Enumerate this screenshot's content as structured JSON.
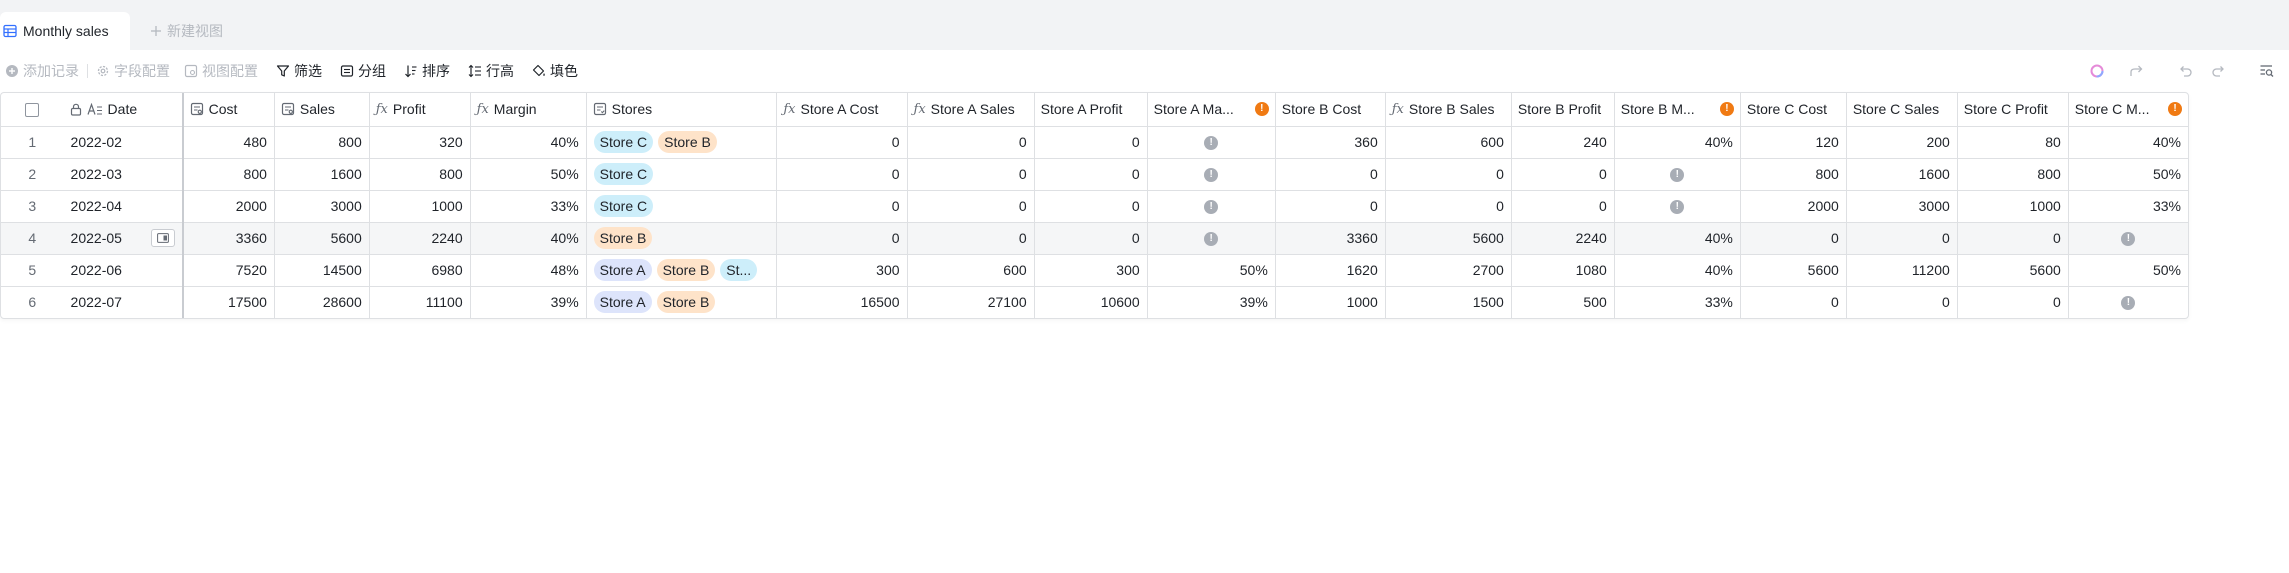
{
  "view": {
    "active_tab": "Monthly sales",
    "new_view": "新建视图"
  },
  "toolbar": {
    "add_record": "添加记录",
    "field_config": "字段配置",
    "view_config": "视图配置",
    "filter": "筛选",
    "group": "分组",
    "sort": "排序",
    "row_height": "行高",
    "fill_color": "填色"
  },
  "colors": {
    "tag_store_a": "#dde4fb",
    "tag_store_b": "#fee3c9",
    "tag_store_c": "#cdeefa",
    "warning": "#f07a13",
    "info": "#a8adb5"
  },
  "table": {
    "columns": [
      {
        "label": "Date",
        "icon": "text-icon"
      },
      {
        "label": "Cost",
        "icon": "number-icon"
      },
      {
        "label": "Sales",
        "icon": "number-icon"
      },
      {
        "label": "Profit",
        "icon": "formula-icon"
      },
      {
        "label": "Margin",
        "icon": "formula-icon"
      },
      {
        "label": "Stores",
        "icon": "multi-select-icon"
      },
      {
        "label": "Store A Cost",
        "icon": "formula-icon"
      },
      {
        "label": "Store A Sales",
        "icon": "formula-icon"
      },
      {
        "label": "Store A Profit",
        "icon": ""
      },
      {
        "label": "Store A Ma...",
        "icon": "",
        "warning": true
      },
      {
        "label": "Store B Cost",
        "icon": ""
      },
      {
        "label": "Store B Sales",
        "icon": "formula-icon"
      },
      {
        "label": "Store B Profit",
        "icon": ""
      },
      {
        "label": "Store B M...",
        "icon": "",
        "warning": true
      },
      {
        "label": "Store C Cost",
        "icon": ""
      },
      {
        "label": "Store C Sales",
        "icon": ""
      },
      {
        "label": "Store C Profit",
        "icon": ""
      },
      {
        "label": "Store C M...",
        "icon": "",
        "warning": true
      }
    ],
    "rows": [
      {
        "n": "1",
        "date": "2022-02",
        "cost": "480",
        "sales": "800",
        "profit": "320",
        "margin": "40%",
        "stores": [
          "Store C",
          "Store B"
        ],
        "a_cost": "0",
        "a_sales": "0",
        "a_profit": "0",
        "a_margin": "!",
        "b_cost": "360",
        "b_sales": "600",
        "b_profit": "240",
        "b_margin": "40%",
        "c_cost": "120",
        "c_sales": "200",
        "c_profit": "80",
        "c_margin": "40%"
      },
      {
        "n": "2",
        "date": "2022-03",
        "cost": "800",
        "sales": "1600",
        "profit": "800",
        "margin": "50%",
        "stores": [
          "Store C"
        ],
        "a_cost": "0",
        "a_sales": "0",
        "a_profit": "0",
        "a_margin": "!",
        "b_cost": "0",
        "b_sales": "0",
        "b_profit": "0",
        "b_margin": "!",
        "c_cost": "800",
        "c_sales": "1600",
        "c_profit": "800",
        "c_margin": "50%"
      },
      {
        "n": "3",
        "date": "2022-04",
        "cost": "2000",
        "sales": "3000",
        "profit": "1000",
        "margin": "33%",
        "stores": [
          "Store C"
        ],
        "a_cost": "0",
        "a_sales": "0",
        "a_profit": "0",
        "a_margin": "!",
        "b_cost": "0",
        "b_sales": "0",
        "b_profit": "0",
        "b_margin": "!",
        "c_cost": "2000",
        "c_sales": "3000",
        "c_profit": "1000",
        "c_margin": "33%"
      },
      {
        "n": "4",
        "date": "2022-05",
        "cost": "3360",
        "sales": "5600",
        "profit": "2240",
        "margin": "40%",
        "stores": [
          "Store B"
        ],
        "a_cost": "0",
        "a_sales": "0",
        "a_profit": "0",
        "a_margin": "!",
        "b_cost": "3360",
        "b_sales": "5600",
        "b_profit": "2240",
        "b_margin": "40%",
        "c_cost": "0",
        "c_sales": "0",
        "c_profit": "0",
        "c_margin": "!"
      },
      {
        "n": "5",
        "date": "2022-06",
        "cost": "7520",
        "sales": "14500",
        "profit": "6980",
        "margin": "48%",
        "stores": [
          "Store A",
          "Store B",
          "St..."
        ],
        "a_cost": "300",
        "a_sales": "600",
        "a_profit": "300",
        "a_margin": "50%",
        "b_cost": "1620",
        "b_sales": "2700",
        "b_profit": "1080",
        "b_margin": "40%",
        "c_cost": "5600",
        "c_sales": "11200",
        "c_profit": "5600",
        "c_margin": "50%"
      },
      {
        "n": "6",
        "date": "2022-07",
        "cost": "17500",
        "sales": "28600",
        "profit": "11100",
        "margin": "39%",
        "stores": [
          "Store A",
          "Store B"
        ],
        "a_cost": "16500",
        "a_sales": "27100",
        "a_profit": "10600",
        "a_margin": "39%",
        "b_cost": "1000",
        "b_sales": "1500",
        "b_profit": "500",
        "b_margin": "33%",
        "c_cost": "0",
        "c_sales": "0",
        "c_profit": "0",
        "c_margin": "!"
      }
    ]
  }
}
